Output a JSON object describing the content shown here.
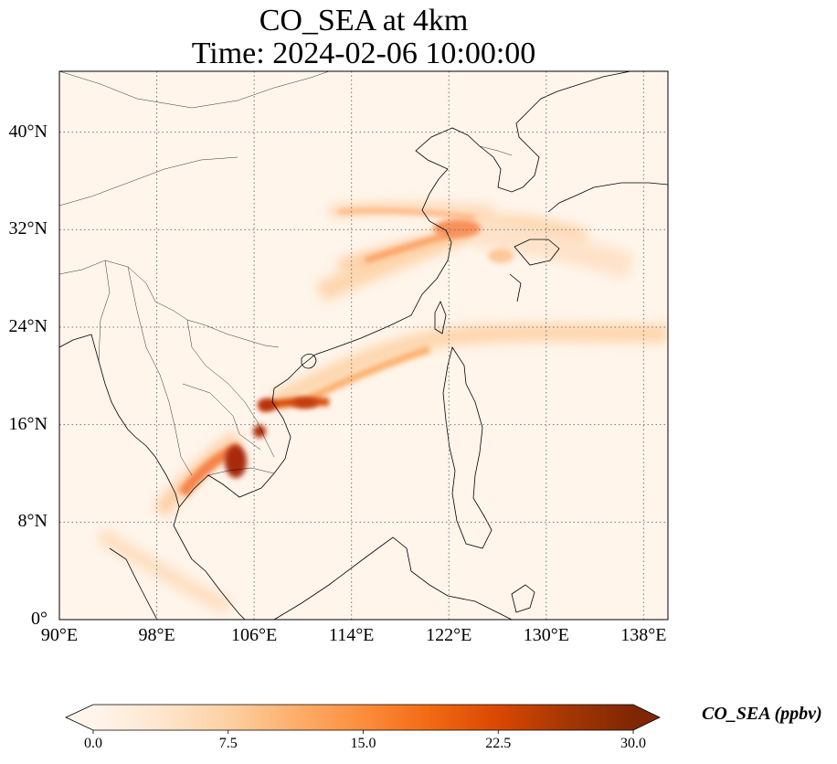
{
  "title": {
    "line1": "CO_SEA at 4km",
    "line2": "Time: 2024-02-06 10:00:00"
  },
  "map": {
    "lon_range": [
      90,
      140
    ],
    "lat_range": [
      0,
      45
    ],
    "gridlines": true,
    "gridline_style": "dotted",
    "lat_ticks": [
      {
        "value": 0,
        "label": "0°"
      },
      {
        "value": 8,
        "label": "8°N"
      },
      {
        "value": 16,
        "label": "16°N"
      },
      {
        "value": 24,
        "label": "24°N"
      },
      {
        "value": 32,
        "label": "32°N"
      },
      {
        "value": 40,
        "label": "40°N"
      }
    ],
    "lon_ticks": [
      {
        "value": 90,
        "label": "90°E"
      },
      {
        "value": 98,
        "label": "98°E"
      },
      {
        "value": 106,
        "label": "106°E"
      },
      {
        "value": 114,
        "label": "114°E"
      },
      {
        "value": 122,
        "label": "122°E"
      },
      {
        "value": 130,
        "label": "130°E"
      },
      {
        "value": 138,
        "label": "138°E"
      }
    ],
    "background_color": "#fff5eb",
    "coastline_color": "#000000"
  },
  "colorbar": {
    "label": "CO_SEA (ppbv)",
    "min": 0,
    "max": 30,
    "extend": "both",
    "colormap": [
      "#fff5eb",
      "#fee6ce",
      "#fdd0a2",
      "#fdae6b",
      "#fd8d3c",
      "#f16913",
      "#d94801",
      "#a63603",
      "#7f2704"
    ],
    "ticks": [
      {
        "value": 0,
        "label": "0.0"
      },
      {
        "value": 7.5,
        "label": "7.5"
      },
      {
        "value": 15,
        "label": "15.0"
      },
      {
        "value": 22.5,
        "label": "22.5"
      },
      {
        "value": 30,
        "label": "30.0"
      }
    ]
  }
}
